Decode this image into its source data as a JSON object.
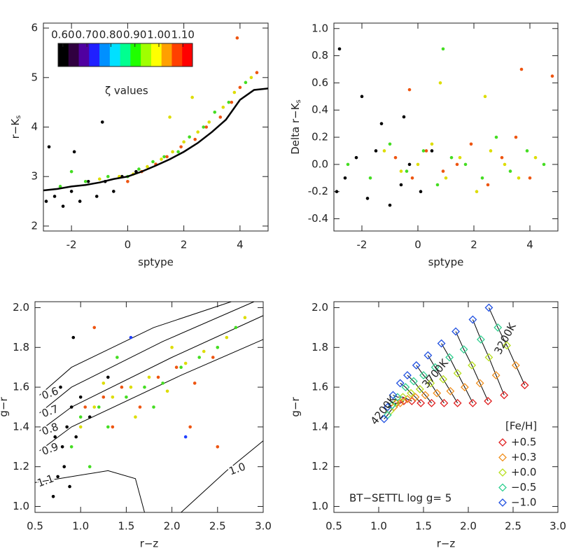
{
  "chart_data": [
    {
      "type": "scatter",
      "xlabel": "sptype",
      "ylabel": "r−K",
      "ylabel_subscript": "s",
      "xlim": [
        -3,
        5
      ],
      "ylim": [
        1.9,
        6.1
      ],
      "xticks": [
        -2,
        0,
        2,
        4
      ],
      "yticks": [
        2,
        3,
        4,
        5,
        6
      ],
      "grid": false,
      "colorbar": {
        "label": "ζ values",
        "lim": [
          0.58,
          1.14
        ],
        "ticks": [
          {
            "value": 0.6,
            "label": "0.60"
          },
          {
            "value": 0.7,
            "label": "0.70"
          },
          {
            "value": 0.8,
            "label": "0.80"
          },
          {
            "value": 0.9,
            "label": "0.90"
          },
          {
            "value": 1.0,
            "label": "1.00"
          },
          {
            "value": 1.1,
            "label": "1.10"
          }
        ],
        "colors": [
          "#000000",
          "#300040",
          "#5000a0",
          "#2020ff",
          "#0090ff",
          "#00e0ff",
          "#00ff90",
          "#20ff00",
          "#a0ff00",
          "#ffff00",
          "#ffa000",
          "#ff4000",
          "#ff0000"
        ]
      },
      "series": [
        {
          "color": "#000000",
          "x": [
            -2.9,
            -2.6,
            -2.3,
            -2.0,
            -1.7,
            -1.4,
            -1.1,
            -0.8,
            -0.5,
            -0.2,
            0.3,
            -2.8,
            -1.9,
            -0.9
          ],
          "values": [
            2.5,
            2.6,
            2.4,
            2.7,
            2.5,
            2.9,
            2.6,
            2.9,
            2.7,
            3.0,
            3.1,
            3.6,
            3.5,
            4.1
          ]
        },
        {
          "color": "#44dd22",
          "x": [
            -2.4,
            -1.5,
            -0.7,
            0.0,
            0.4,
            0.9,
            1.3,
            1.8,
            2.2,
            2.7,
            3.1,
            3.6,
            4.2,
            -2.0
          ],
          "values": [
            2.8,
            2.9,
            3.0,
            3.0,
            3.15,
            3.3,
            3.4,
            3.5,
            3.8,
            4.0,
            4.3,
            4.5,
            4.9,
            3.1
          ]
        },
        {
          "color": "#dddd00",
          "x": [
            -1.0,
            -0.3,
            0.2,
            0.7,
            1.2,
            1.6,
            2.0,
            2.5,
            2.9,
            3.4,
            3.8,
            4.4,
            1.5,
            2.3
          ],
          "values": [
            2.95,
            3.0,
            3.05,
            3.2,
            3.35,
            3.5,
            3.7,
            3.9,
            4.1,
            4.4,
            4.7,
            5.0,
            4.2,
            4.6
          ]
        },
        {
          "color": "#ee5511",
          "x": [
            0.0,
            0.5,
            1.0,
            1.4,
            1.9,
            2.4,
            2.8,
            3.3,
            3.7,
            4.0,
            4.6,
            3.9
          ],
          "values": [
            2.9,
            3.1,
            3.25,
            3.4,
            3.6,
            3.75,
            4.0,
            4.2,
            4.5,
            4.8,
            5.1,
            5.8
          ]
        }
      ],
      "line": {
        "color": "#000000",
        "x": [
          -3,
          -2.5,
          -2,
          -1.5,
          -1,
          -0.5,
          0,
          0.5,
          1,
          1.5,
          2,
          2.5,
          3,
          3.5,
          4,
          4.5,
          5
        ],
        "values": [
          2.72,
          2.75,
          2.8,
          2.83,
          2.88,
          2.95,
          3.0,
          3.1,
          3.22,
          3.35,
          3.5,
          3.68,
          3.9,
          4.15,
          4.55,
          4.75,
          4.78
        ]
      }
    },
    {
      "type": "scatter",
      "xlabel": "sptype",
      "ylabel": "Delta r−K",
      "ylabel_subscript": "s",
      "xlim": [
        -3,
        5
      ],
      "ylim": [
        -0.49,
        1.04
      ],
      "xticks": [
        -2,
        0,
        2,
        4
      ],
      "yticks": [
        {
          "value": -0.4,
          "label": "-0.4"
        },
        {
          "value": -0.2,
          "label": "-0.2"
        },
        {
          "value": 0,
          "label": "0.0"
        },
        0.2,
        0.4,
        0.6,
        0.8,
        {
          "value": 1,
          "label": "1.0"
        }
      ],
      "grid": false,
      "series": [
        {
          "color": "#000000",
          "x": [
            -2.9,
            -2.6,
            -2.2,
            -1.8,
            -1.5,
            -1.0,
            -0.6,
            -0.3,
            0.1,
            0.5,
            -2.8,
            -2.0,
            -1.3,
            -0.5
          ],
          "values": [
            -0.2,
            -0.1,
            0.05,
            -0.25,
            0.1,
            -0.3,
            -0.15,
            0.0,
            -0.2,
            0.1,
            0.85,
            0.5,
            0.3,
            0.35
          ]
        },
        {
          "color": "#44dd22",
          "x": [
            -2.5,
            -1.7,
            -1.0,
            -0.4,
            0.2,
            0.7,
            1.2,
            1.7,
            2.3,
            2.8,
            3.3,
            3.9,
            4.5,
            0.9
          ],
          "values": [
            0.0,
            -0.1,
            0.15,
            -0.05,
            0.1,
            -0.15,
            0.05,
            0.0,
            -0.1,
            0.2,
            -0.05,
            0.1,
            0.0,
            0.85
          ]
        },
        {
          "color": "#dddd00",
          "x": [
            -1.2,
            -0.6,
            0.0,
            0.5,
            1.0,
            1.5,
            2.1,
            2.6,
            3.1,
            3.6,
            4.2,
            0.8,
            2.4
          ],
          "values": [
            0.1,
            -0.05,
            0.0,
            0.15,
            -0.1,
            0.05,
            -0.2,
            0.1,
            0.0,
            -0.1,
            0.05,
            0.6,
            0.5
          ]
        },
        {
          "color": "#ee5511",
          "x": [
            -0.8,
            -0.2,
            0.3,
            0.9,
            1.4,
            1.9,
            2.5,
            3.0,
            3.5,
            4.0,
            4.8,
            -0.3,
            3.7
          ],
          "values": [
            0.05,
            -0.1,
            0.1,
            -0.05,
            0.0,
            0.15,
            -0.15,
            0.05,
            0.2,
            -0.1,
            0.65,
            0.55,
            0.7
          ]
        }
      ]
    },
    {
      "type": "scatter",
      "xlabel": "r−z",
      "ylabel": "g−r",
      "xlim": [
        0.5,
        3.0
      ],
      "ylim": [
        0.97,
        2.03
      ],
      "xticks": [
        0.5,
        {
          "value": 1,
          "label": "1.0"
        },
        1.5,
        {
          "value": 2,
          "label": "2.0"
        },
        2.5,
        {
          "value": 3,
          "label": "3.0"
        }
      ],
      "yticks": [
        {
          "value": 1,
          "label": "1.0"
        },
        1.2,
        1.4,
        1.6,
        1.8,
        {
          "value": 2,
          "label": "2.0"
        }
      ],
      "grid": false,
      "series": [
        {
          "color": "#000000",
          "x": [
            0.7,
            0.75,
            0.8,
            0.85,
            0.9,
            0.95,
            1.0,
            0.78,
            0.82,
            0.88,
            1.1,
            1.3,
            0.72,
            0.92
          ],
          "values": [
            1.05,
            1.15,
            1.3,
            1.4,
            1.5,
            1.35,
            1.55,
            1.6,
            1.2,
            1.1,
            1.45,
            1.65,
            1.35,
            1.85
          ]
        },
        {
          "color": "#44dd22",
          "x": [
            0.9,
            1.0,
            1.2,
            1.3,
            1.5,
            1.7,
            1.9,
            2.1,
            2.3,
            2.5,
            1.4,
            1.8,
            2.7,
            1.1
          ],
          "values": [
            1.3,
            1.45,
            1.5,
            1.4,
            1.55,
            1.6,
            1.62,
            1.7,
            1.75,
            1.8,
            1.75,
            1.5,
            1.9,
            1.2
          ]
        },
        {
          "color": "#dddd00",
          "x": [
            1.0,
            1.15,
            1.35,
            1.55,
            1.75,
            1.95,
            2.15,
            2.35,
            2.6,
            1.25,
            1.6,
            2.0,
            2.8
          ],
          "values": [
            1.4,
            1.5,
            1.55,
            1.6,
            1.65,
            1.58,
            1.72,
            1.78,
            1.85,
            1.62,
            1.45,
            1.8,
            1.95
          ]
        },
        {
          "color": "#ee5511",
          "x": [
            1.05,
            1.25,
            1.45,
            1.65,
            1.85,
            2.05,
            2.25,
            2.45,
            1.35,
            2.2,
            2.5,
            1.15
          ],
          "values": [
            1.5,
            1.55,
            1.6,
            1.5,
            1.65,
            1.7,
            1.62,
            1.75,
            1.4,
            1.4,
            1.3,
            1.9
          ]
        },
        {
          "color": "#2040ff",
          "x": [
            1.55,
            2.15
          ],
          "values": [
            1.85,
            1.35
          ]
        }
      ],
      "contours": [
        {
          "label": "0.6",
          "x": [
            0.55,
            0.9,
            1.8,
            2.65
          ],
          "values": [
            1.56,
            1.7,
            1.9,
            2.03
          ]
        },
        {
          "label": "0.7",
          "x": [
            0.55,
            0.9,
            1.9,
            2.9
          ],
          "values": [
            1.47,
            1.6,
            1.83,
            2.03
          ]
        },
        {
          "label": "0.8",
          "x": [
            0.55,
            0.9,
            2.0,
            3.0
          ],
          "values": [
            1.38,
            1.5,
            1.75,
            1.96
          ]
        },
        {
          "label": "0.9",
          "x": [
            0.55,
            0.9,
            2.1,
            3.0
          ],
          "values": [
            1.28,
            1.4,
            1.66,
            1.84
          ]
        },
        {
          "label": "1.1",
          "x": [
            0.5,
            1.3,
            1.6,
            1.7
          ],
          "values": [
            1.12,
            1.18,
            1.14,
            0.97
          ]
        },
        {
          "label": "1.0",
          "x": [
            2.1,
            2.6,
            3.0
          ],
          "values": [
            0.97,
            1.18,
            1.33
          ]
        }
      ]
    },
    {
      "type": "scatter",
      "marker": "diamond",
      "connect_points": true,
      "xlabel": "r−z",
      "ylabel": "g−r",
      "xlim": [
        0.5,
        3.0
      ],
      "ylim": [
        0.97,
        2.03
      ],
      "xticks": [
        0.5,
        {
          "value": 1,
          "label": "1.0"
        },
        1.5,
        {
          "value": 2,
          "label": "2.0"
        },
        2.5,
        {
          "value": 3,
          "label": "3.0"
        }
      ],
      "yticks": [
        {
          "value": 1,
          "label": "1.0"
        },
        1.2,
        1.4,
        1.6,
        1.8,
        {
          "value": 2,
          "label": "2.0"
        }
      ],
      "grid": false,
      "legend_title": "[Fe/H]",
      "legend": "lower right",
      "note": "BT−SETTL log g= 5",
      "annotations": [
        "4200K",
        "3700K",
        "3200K"
      ],
      "series": [
        {
          "name": "+0.5",
          "color": "#e02020",
          "x": [
            1.2,
            1.28,
            1.37,
            1.47,
            1.59,
            1.73,
            1.88,
            2.05,
            2.22,
            2.4,
            2.63
          ],
          "values": [
            1.52,
            1.53,
            1.53,
            1.52,
            1.52,
            1.52,
            1.52,
            1.52,
            1.53,
            1.56,
            1.61
          ]
        },
        {
          "name": "+0.3",
          "color": "#f09020",
          "x": [
            1.17,
            1.24,
            1.32,
            1.41,
            1.52,
            1.65,
            1.8,
            1.96,
            2.13,
            2.31,
            2.53
          ],
          "values": [
            1.5,
            1.52,
            1.54,
            1.55,
            1.56,
            1.57,
            1.58,
            1.6,
            1.62,
            1.66,
            1.71
          ]
        },
        {
          "name": "+0.0",
          "color": "#b8e020",
          "x": [
            1.13,
            1.19,
            1.27,
            1.36,
            1.46,
            1.58,
            1.72,
            1.88,
            2.04,
            2.23,
            2.43
          ],
          "values": [
            1.48,
            1.52,
            1.55,
            1.57,
            1.59,
            1.62,
            1.64,
            1.67,
            1.71,
            1.75,
            1.81
          ]
        },
        {
          "name": "−0.5",
          "color": "#30d090",
          "x": [
            1.1,
            1.15,
            1.21,
            1.3,
            1.39,
            1.5,
            1.63,
            1.79,
            1.95,
            2.14,
            2.33
          ],
          "values": [
            1.46,
            1.51,
            1.55,
            1.6,
            1.63,
            1.66,
            1.7,
            1.75,
            1.79,
            1.84,
            1.9
          ]
        },
        {
          "name": "−1.0",
          "color": "#2050e0",
          "x": [
            1.06,
            1.1,
            1.16,
            1.24,
            1.32,
            1.42,
            1.55,
            1.7,
            1.86,
            2.05,
            2.23
          ],
          "values": [
            1.44,
            1.5,
            1.56,
            1.62,
            1.66,
            1.71,
            1.76,
            1.82,
            1.88,
            1.94,
            2.0
          ]
        }
      ]
    }
  ]
}
